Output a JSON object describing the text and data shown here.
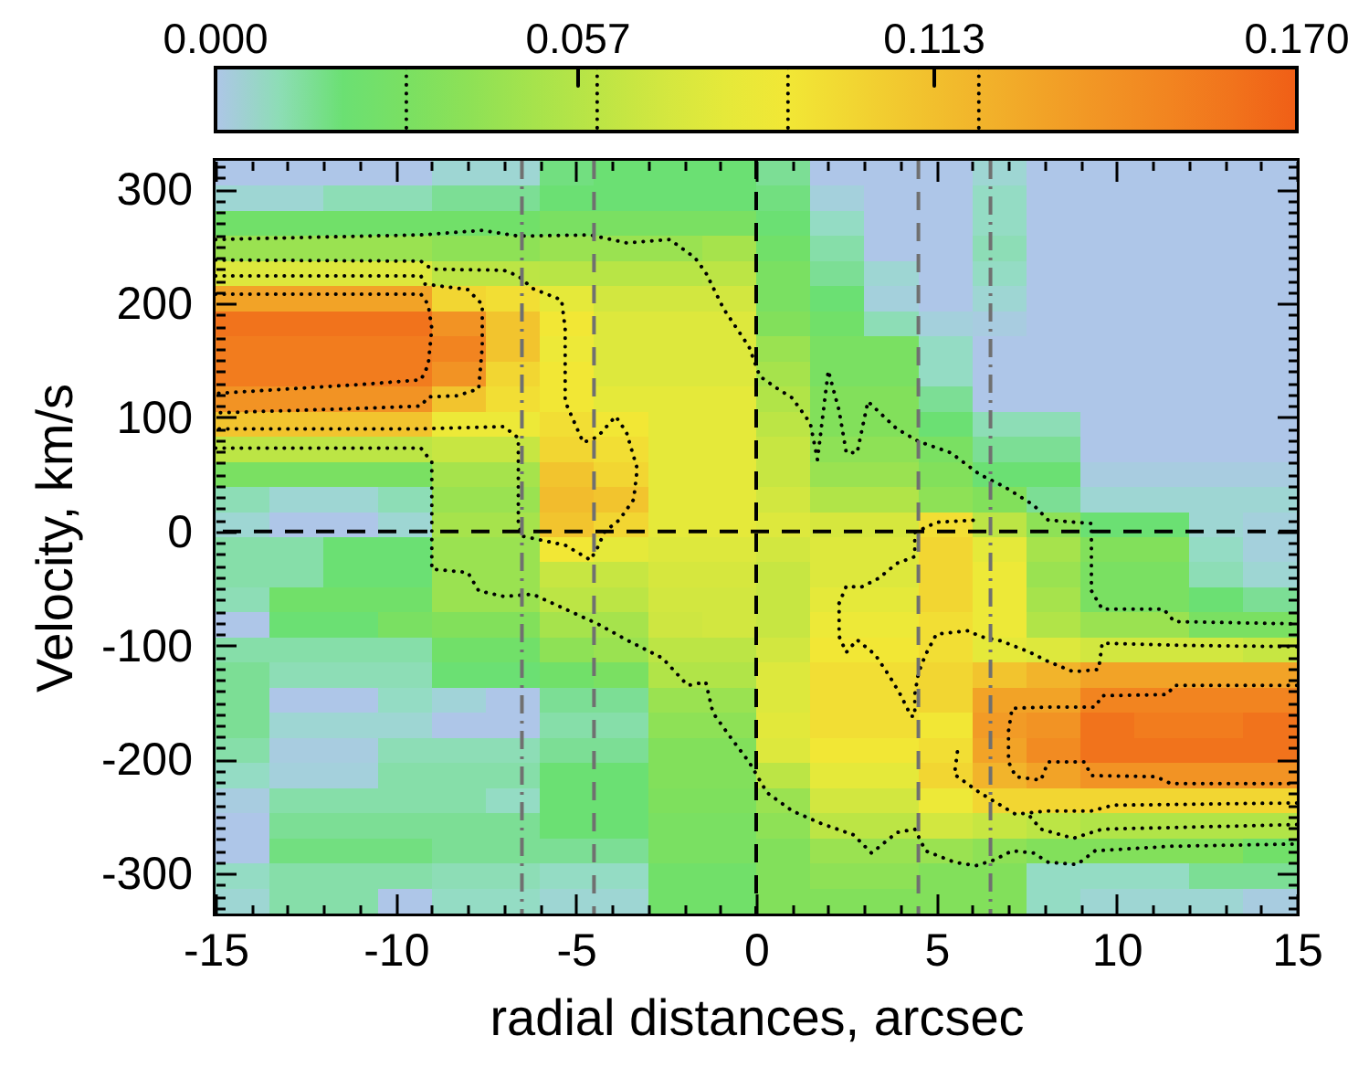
{
  "chart_data": {
    "type": "heatmap",
    "xlabel": "radial distances, arcsec",
    "ylabel": "Velocity, km/s",
    "x": [
      -14.25,
      -12.75,
      -11.25,
      -9.75,
      -8.25,
      -6.75,
      -5.25,
      -3.75,
      -2.25,
      -0.75,
      0.75,
      2.25,
      3.75,
      5.25,
      6.75,
      8.25,
      9.75,
      11.25,
      12.75,
      14.25
    ],
    "y": [
      314,
      292,
      270,
      248,
      226,
      204,
      182,
      160,
      138,
      116,
      94,
      72,
      50,
      28,
      6,
      -16,
      -38,
      -60,
      -82,
      -104,
      -126,
      -148,
      -170,
      -192,
      -214,
      -236,
      -258,
      -280,
      -302,
      -324
    ],
    "cells": [
      [
        0,
        0,
        0,
        0,
        0.005,
        0.005,
        0.018,
        0.02,
        0.02,
        0.02,
        0.015,
        0,
        0,
        0,
        0.005,
        0,
        0,
        0,
        0,
        0
      ],
      [
        0.005,
        0.005,
        0.01,
        0.01,
        0.015,
        0.015,
        0.02,
        0.02,
        0.02,
        0.02,
        0.018,
        0.003,
        0,
        0,
        0.008,
        0,
        0,
        0,
        0,
        0
      ],
      [
        0.025,
        0.025,
        0.025,
        0.025,
        0.025,
        0.025,
        0.03,
        0.03,
        0.03,
        0.03,
        0.02,
        0.008,
        0,
        0,
        0.008,
        0,
        0,
        0,
        0,
        0
      ],
      [
        0.045,
        0.045,
        0.045,
        0.045,
        0.04,
        0.04,
        0.045,
        0.045,
        0.045,
        0.05,
        0.025,
        0.012,
        0,
        0,
        0.01,
        0,
        0,
        0,
        0,
        0
      ],
      [
        0.075,
        0.075,
        0.075,
        0.075,
        0.06,
        0.06,
        0.058,
        0.058,
        0.058,
        0.06,
        0.03,
        0.015,
        0.005,
        0,
        0.008,
        0,
        0,
        0,
        0,
        0
      ],
      [
        0.13,
        0.13,
        0.13,
        0.13,
        0.1,
        0.095,
        0.08,
        0.07,
        0.07,
        0.07,
        0.03,
        0.02,
        0.003,
        0,
        0.005,
        0,
        0,
        0,
        0,
        0
      ],
      [
        0.16,
        0.16,
        0.16,
        0.16,
        0.14,
        0.11,
        0.09,
        0.075,
        0.075,
        0.075,
        0.035,
        0.025,
        0.01,
        0.003,
        0.002,
        0,
        0,
        0,
        0,
        0
      ],
      [
        0.155,
        0.155,
        0.155,
        0.155,
        0.15,
        0.11,
        0.085,
        0.075,
        0.075,
        0.075,
        0.045,
        0.03,
        0.03,
        0.008,
        0,
        0,
        0,
        0,
        0,
        0
      ],
      [
        0.155,
        0.155,
        0.155,
        0.155,
        0.14,
        0.1,
        0.09,
        0.075,
        0.075,
        0.075,
        0.05,
        0.03,
        0.03,
        0.008,
        0,
        0,
        0,
        0,
        0,
        0
      ],
      [
        0.14,
        0.14,
        0.14,
        0.14,
        0.11,
        0.095,
        0.09,
        0.08,
        0.08,
        0.08,
        0.055,
        0.035,
        0.035,
        0.015,
        0,
        0,
        0,
        0,
        0,
        0
      ],
      [
        0.11,
        0.11,
        0.11,
        0.11,
        0.085,
        0.085,
        0.095,
        0.09,
        0.08,
        0.08,
        0.06,
        0.035,
        0.035,
        0.02,
        0.01,
        0.01,
        0,
        0,
        0,
        0
      ],
      [
        0.06,
        0.06,
        0.06,
        0.06,
        0.065,
        0.065,
        0.1,
        0.095,
        0.08,
        0.08,
        0.065,
        0.04,
        0.04,
        0.03,
        0.015,
        0.015,
        0,
        0,
        0,
        0
      ],
      [
        0.03,
        0.03,
        0.03,
        0.03,
        0.05,
        0.05,
        0.11,
        0.1,
        0.08,
        0.08,
        0.065,
        0.045,
        0.045,
        0.035,
        0.02,
        0.02,
        0.002,
        0.002,
        0.002,
        0.002
      ],
      [
        0.01,
        0.005,
        0.005,
        0.01,
        0.045,
        0.045,
        0.115,
        0.11,
        0.08,
        0.08,
        0.07,
        0.055,
        0.055,
        0.04,
        0.035,
        0.015,
        0.005,
        0.005,
        0.005,
        0.005
      ],
      [
        0.005,
        0,
        0,
        0.005,
        0.05,
        0.05,
        0.11,
        0.1,
        0.08,
        0.08,
        0.075,
        0.072,
        0.072,
        0.095,
        0.06,
        0.04,
        0.02,
        0.02,
        0.005,
        0.003
      ],
      [
        0.012,
        0.012,
        0.02,
        0.02,
        0.045,
        0.045,
        0.09,
        0.08,
        0.075,
        0.075,
        0.07,
        0.075,
        0.075,
        0.1,
        0.08,
        0.05,
        0.035,
        0.035,
        0.008,
        0.003
      ],
      [
        0.012,
        0.012,
        0.02,
        0.02,
        0.045,
        0.045,
        0.065,
        0.065,
        0.072,
        0.072,
        0.065,
        0.075,
        0.075,
        0.1,
        0.085,
        0.045,
        0.03,
        0.03,
        0.01,
        0.005
      ],
      [
        0.01,
        0.025,
        0.025,
        0.025,
        0.045,
        0.045,
        0.06,
        0.06,
        0.07,
        0.07,
        0.065,
        0.08,
        0.08,
        0.1,
        0.085,
        0.05,
        0.03,
        0.03,
        0.02,
        0.015
      ],
      [
        0,
        0.02,
        0.02,
        0.03,
        0.035,
        0.035,
        0.05,
        0.05,
        0.068,
        0.07,
        0.065,
        0.085,
        0.085,
        0.095,
        0.085,
        0.055,
        0.045,
        0.045,
        0.03,
        0.03
      ],
      [
        0.012,
        0.012,
        0.012,
        0.012,
        0.025,
        0.025,
        0.04,
        0.045,
        0.06,
        0.06,
        0.07,
        0.09,
        0.09,
        0.095,
        0.08,
        0.075,
        0.07,
        0.07,
        0.07,
        0.065
      ],
      [
        0.015,
        0.01,
        0.01,
        0.01,
        0.02,
        0.02,
        0.025,
        0.03,
        0.055,
        0.055,
        0.075,
        0.095,
        0.095,
        0.1,
        0.11,
        0.12,
        0.13,
        0.13,
        0.13,
        0.13
      ],
      [
        0.015,
        0,
        0,
        0.008,
        0.004,
        0,
        0.015,
        0.015,
        0.045,
        0.045,
        0.075,
        0.095,
        0.095,
        0.1,
        0.13,
        0.13,
        0.15,
        0.15,
        0.15,
        0.15
      ],
      [
        0.015,
        0.005,
        0.005,
        0.005,
        0,
        0,
        0.012,
        0.012,
        0.04,
        0.04,
        0.078,
        0.095,
        0.095,
        0.09,
        0.135,
        0.14,
        0.16,
        0.155,
        0.155,
        0.16
      ],
      [
        0.012,
        0.002,
        0.002,
        0.01,
        0.01,
        0.01,
        0.015,
        0.015,
        0.035,
        0.035,
        0.075,
        0.09,
        0.09,
        0.095,
        0.13,
        0.145,
        0.16,
        0.16,
        0.16,
        0.16
      ],
      [
        0.008,
        0.003,
        0.003,
        0.012,
        0.012,
        0.012,
        0.02,
        0.02,
        0.035,
        0.035,
        0.06,
        0.08,
        0.08,
        0.1,
        0.12,
        0.13,
        0.14,
        0.14,
        0.14,
        0.14
      ],
      [
        0.002,
        0.012,
        0.012,
        0.012,
        0.012,
        0.008,
        0.02,
        0.02,
        0.033,
        0.033,
        0.045,
        0.07,
        0.07,
        0.085,
        0.1,
        0.1,
        0.1,
        0.1,
        0.1,
        0.1
      ],
      [
        0,
        0.015,
        0.015,
        0.015,
        0.015,
        0.015,
        0.02,
        0.02,
        0.03,
        0.03,
        0.04,
        0.06,
        0.06,
        0.07,
        0.065,
        0.06,
        0.055,
        0.055,
        0.055,
        0.055
      ],
      [
        0,
        0.018,
        0.018,
        0.018,
        0.015,
        0.015,
        0.015,
        0.015,
        0.03,
        0.03,
        0.035,
        0.045,
        0.045,
        0.045,
        0.04,
        0.035,
        0.035,
        0.035,
        0.035,
        0.025
      ],
      [
        0.008,
        0.012,
        0.012,
        0.012,
        0.01,
        0.01,
        0.008,
        0.008,
        0.025,
        0.025,
        0.035,
        0.04,
        0.04,
        0.035,
        0.035,
        0.008,
        0.008,
        0.008,
        0.015,
        0.015
      ],
      [
        0.005,
        0.012,
        0.012,
        0,
        0.008,
        0.008,
        0.005,
        0.005,
        0.025,
        0.025,
        0.035,
        0.035,
        0.035,
        0.035,
        0.035,
        0.008,
        0.005,
        0.005,
        0.005,
        0.002
      ]
    ],
    "xlim": [
      -15,
      15
    ],
    "ylim": [
      -335,
      325
    ],
    "xticks": [
      -15,
      {
        "value": -14,
        "label": null
      },
      {
        "value": -13,
        "label": null
      },
      {
        "value": -12,
        "label": null
      },
      {
        "value": -11,
        "label": null
      },
      -10,
      {
        "value": -9,
        "label": null
      },
      {
        "value": -8,
        "label": null
      },
      {
        "value": -7,
        "label": null
      },
      {
        "value": -6,
        "label": null
      },
      -5,
      {
        "value": -4,
        "label": null
      },
      {
        "value": -3,
        "label": null
      },
      {
        "value": -2,
        "label": null
      },
      {
        "value": -1,
        "label": null
      },
      0,
      {
        "value": 1,
        "label": null
      },
      {
        "value": 2,
        "label": null
      },
      {
        "value": 3,
        "label": null
      },
      {
        "value": 4,
        "label": null
      },
      5,
      {
        "value": 6,
        "label": null
      },
      {
        "value": 7,
        "label": null
      },
      {
        "value": 8,
        "label": null
      },
      {
        "value": 9,
        "label": null
      },
      10,
      {
        "value": 11,
        "label": null
      },
      {
        "value": 12,
        "label": null
      },
      {
        "value": 13,
        "label": null
      },
      {
        "value": 14,
        "label": null
      },
      15
    ],
    "yticks": [
      {
        "value": -330,
        "label": null
      },
      {
        "value": -320,
        "label": null
      },
      {
        "value": -310,
        "label": null
      },
      -300,
      {
        "value": -290,
        "label": null
      },
      {
        "value": -280,
        "label": null
      },
      {
        "value": -270,
        "label": null
      },
      {
        "value": -260,
        "label": null
      },
      {
        "value": -250,
        "label": null
      },
      {
        "value": -240,
        "label": null
      },
      {
        "value": -230,
        "label": null
      },
      {
        "value": -220,
        "label": null
      },
      {
        "value": -210,
        "label": null
      },
      -200,
      {
        "value": -190,
        "label": null
      },
      {
        "value": -180,
        "label": null
      },
      {
        "value": -170,
        "label": null
      },
      {
        "value": -160,
        "label": null
      },
      {
        "value": -150,
        "label": null
      },
      {
        "value": -140,
        "label": null
      },
      {
        "value": -130,
        "label": null
      },
      {
        "value": -120,
        "label": null
      },
      {
        "value": -110,
        "label": null
      },
      -100,
      {
        "value": -90,
        "label": null
      },
      {
        "value": -80,
        "label": null
      },
      {
        "value": -70,
        "label": null
      },
      {
        "value": -60,
        "label": null
      },
      {
        "value": -50,
        "label": null
      },
      {
        "value": -40,
        "label": null
      },
      {
        "value": -30,
        "label": null
      },
      {
        "value": -20,
        "label": null
      },
      {
        "value": -10,
        "label": null
      },
      0,
      {
        "value": 10,
        "label": null
      },
      {
        "value": 20,
        "label": null
      },
      {
        "value": 30,
        "label": null
      },
      {
        "value": 40,
        "label": null
      },
      {
        "value": 50,
        "label": null
      },
      {
        "value": 60,
        "label": null
      },
      {
        "value": 70,
        "label": null
      },
      {
        "value": 80,
        "label": null
      },
      {
        "value": 90,
        "label": null
      },
      100,
      {
        "value": 110,
        "label": null
      },
      {
        "value": 120,
        "label": null
      },
      {
        "value": 130,
        "label": null
      },
      {
        "value": 140,
        "label": null
      },
      {
        "value": 150,
        "label": null
      },
      {
        "value": 160,
        "label": null
      },
      {
        "value": 170,
        "label": null
      },
      {
        "value": 180,
        "label": null
      },
      {
        "value": 190,
        "label": null
      },
      200,
      {
        "value": 210,
        "label": null
      },
      {
        "value": 220,
        "label": null
      },
      {
        "value": 230,
        "label": null
      },
      {
        "value": 240,
        "label": null
      },
      {
        "value": 250,
        "label": null
      },
      {
        "value": 260,
        "label": null
      },
      {
        "value": 270,
        "label": null
      },
      {
        "value": 280,
        "label": null
      },
      {
        "value": 290,
        "label": null
      },
      300,
      {
        "value": 310,
        "label": null
      },
      {
        "value": 320,
        "label": null
      }
    ],
    "clim": [
      0,
      0.17
    ],
    "cticks": [
      {
        "value": 0,
        "label": "0.000"
      },
      {
        "value": 0.03,
        "label": null
      },
      0.057,
      {
        "value": 0.06,
        "label": null
      },
      {
        "value": 0.09,
        "label": null
      },
      0.113,
      {
        "value": 0.12,
        "label": null
      },
      {
        "value": 0.17,
        "label": "0.170"
      }
    ],
    "ref_lines": [
      {
        "axis": "x",
        "value": 0,
        "color": "#000000",
        "line_style": "dashed"
      },
      {
        "axis": "y",
        "value": 0,
        "color": "#000000",
        "line_style": "dashed"
      },
      {
        "axis": "x",
        "value": -6.5,
        "color": "#707070",
        "line_style": "dashdot"
      },
      {
        "axis": "x",
        "value": -4.5,
        "color": "#707070",
        "line_style": "dashed"
      },
      {
        "axis": "x",
        "value": 4.5,
        "color": "#707070",
        "line_style": "dashed"
      },
      {
        "axis": "x",
        "value": 6.5,
        "color": "#707070",
        "line_style": "dashdot"
      }
    ],
    "series": [
      {
        "type": "line",
        "color": "#000000",
        "line_style": "dotted",
        "x": [
          -15,
          -10.9,
          -9.3,
          -7.6,
          -6.6,
          -4.6,
          -3.6,
          -2.4,
          -1.7,
          -1.4,
          -0.9,
          -0.2,
          0.1,
          0.6,
          1,
          1.5,
          1.7,
          2,
          2.3,
          2.5,
          2.8,
          3.1,
          3.9,
          4.5,
          5.4,
          6.2,
          6.9,
          7.7,
          8.1,
          9.3,
          9.3,
          9.6,
          11.3,
          11.6,
          15
        ],
        "values": [
          256,
          259,
          260,
          264,
          259,
          260,
          253,
          256,
          240,
          227,
          195,
          162,
          136,
          125,
          117,
          95,
          63,
          141,
          106,
          69,
          69,
          114,
          90,
          79,
          69,
          50,
          39,
          23,
          10,
          7,
          -52,
          -68,
          -68,
          -79,
          -81
        ]
      },
      {
        "type": "line",
        "color": "#000000",
        "line_style": "dotted",
        "x": [
          -15,
          -9.3,
          -9,
          -9,
          -8,
          -7.7,
          -7,
          -6.2,
          -5.3,
          -4.4,
          -3.6,
          -2.6,
          -1.9,
          -1.4,
          -1.2,
          -0.7,
          -0.2,
          0.3,
          1,
          1.8,
          2.7,
          3.2,
          3.9,
          4.4,
          4.7,
          5.5,
          6.1,
          6.6,
          7.1,
          7.7,
          8.1,
          8.9,
          9.4,
          11.5,
          15
        ],
        "values": [
          73,
          73,
          61,
          -33,
          -36,
          -52,
          -57,
          -55,
          -68,
          -81,
          -95,
          -111,
          -135,
          -132,
          -159,
          -181,
          -202,
          -229,
          -245,
          -256,
          -266,
          -282,
          -264,
          -261,
          -280,
          -290,
          -293,
          -288,
          -280,
          -282,
          -290,
          -292,
          -280,
          -276,
          -274
        ]
      },
      {
        "type": "line",
        "color": "#000000",
        "line_style": "dotted",
        "x": [
          -15,
          -9.3,
          -9,
          -7,
          -6.6,
          -6.2,
          -5.4,
          -5.3,
          -5.3,
          -4.8,
          -4.4,
          -3.9,
          -3.6,
          -3.3,
          -3.4,
          -3.8,
          -4.2,
          -4.4,
          -4.6,
          -5.3,
          -6.5,
          -6.6,
          -6.6,
          -7,
          -9.3,
          -15
        ],
        "values": [
          238,
          237,
          230,
          229,
          224,
          213,
          203,
          178,
          114,
          78,
          83,
          101,
          87,
          55,
          28,
          10,
          0,
          -14,
          -25,
          -12,
          -4,
          7,
          82,
          92,
          90,
          90
        ]
      },
      {
        "type": "line",
        "color": "#000000",
        "line_style": "dotted",
        "x": [
          -15,
          -9.3,
          -9.2,
          -8,
          -7.6,
          -7.6,
          -7.7,
          -8.3,
          -9.1,
          -9.3,
          -10.9,
          -15
        ],
        "values": [
          224,
          224,
          217,
          212,
          199,
          162,
          125,
          119,
          118,
          110,
          108,
          104
        ]
      },
      {
        "type": "line",
        "color": "#000000",
        "line_style": "dotted",
        "x": [
          -15,
          -9.3,
          -9.1,
          -9,
          -9.1,
          -9.3,
          -10.9,
          -15
        ],
        "values": [
          208,
          208,
          199,
          178,
          146,
          133,
          129,
          121
        ]
      },
      {
        "type": "line",
        "color": "#000000",
        "line_style": "dotted",
        "x": [
          15,
          12.1,
          9.6,
          9.5,
          8.8,
          8.1,
          7.6,
          6.8,
          6.2,
          5.9,
          5,
          4.7,
          4.5,
          4.4,
          4.4,
          4.3,
          4,
          3.7,
          3.3,
          2.8,
          2.5,
          2.3,
          2.3,
          2.5,
          2.9,
          3.4,
          3.9,
          4.4,
          4.4,
          5,
          5.5,
          6.1
        ],
        "values": [
          -101,
          -100,
          -98,
          -121,
          -123,
          -114,
          -106,
          -96,
          -92,
          -87,
          -90,
          -108,
          -124,
          -143,
          -162,
          -162,
          -143,
          -127,
          -108,
          -95,
          -106,
          -92,
          -63,
          -48,
          -49,
          -41,
          -28,
          -22,
          -1,
          8,
          9,
          10
        ]
      },
      {
        "type": "line",
        "color": "#000000",
        "line_style": "dotted",
        "x": [
          15,
          11.6,
          11.4,
          9.6,
          9.4,
          8.1,
          7.1,
          7,
          7,
          7.2,
          7.9,
          8.1,
          8.5,
          9.1,
          9.3,
          11.1,
          11.5,
          15
        ],
        "values": [
          -135,
          -135,
          -143,
          -144,
          -154,
          -154,
          -155,
          -175,
          -202,
          -215,
          -218,
          -202,
          -202,
          -202,
          -214,
          -215,
          -221,
          -221
        ]
      },
      {
        "type": "line",
        "color": "#000000",
        "line_style": "dotted",
        "x": [
          15,
          9.9,
          9.3,
          8.1,
          7.2,
          6.2,
          5.5,
          5.6
        ],
        "values": [
          -238,
          -240,
          -245,
          -245,
          -248,
          -229,
          -213,
          -189
        ]
      },
      {
        "type": "line",
        "color": "#000000",
        "line_style": "dotted",
        "x": [
          15,
          9.6,
          8.8,
          7.9,
          7.6
        ],
        "values": [
          -257,
          -261,
          -269,
          -261,
          -250
        ]
      }
    ]
  }
}
